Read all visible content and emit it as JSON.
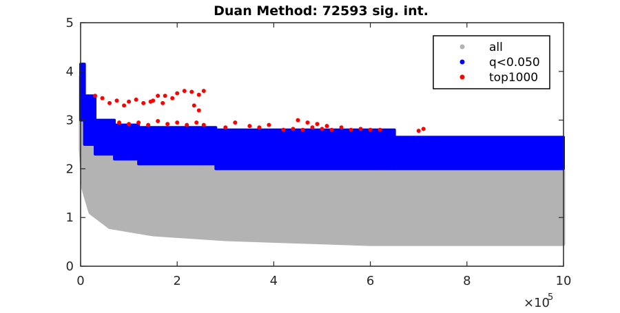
{
  "chart_data": {
    "type": "scatter",
    "title": "Duan Method: 72593 sig. int.",
    "xlabel": "",
    "ylabel": "",
    "xlim": [
      0,
      1000000
    ],
    "ylim": [
      0,
      5
    ],
    "x_ticks": [
      0,
      200000,
      400000,
      600000,
      800000,
      1000000
    ],
    "x_tick_labels": [
      "0",
      "2",
      "4",
      "6",
      "8",
      "10"
    ],
    "x_exponent_label": "×10",
    "x_exponent_power": "5",
    "y_ticks": [
      0,
      1,
      2,
      3,
      4,
      5
    ],
    "y_tick_labels": [
      "0",
      "1",
      "2",
      "3",
      "4",
      "5"
    ],
    "grid": false,
    "legend_position": "top-right",
    "series": [
      {
        "name": "all",
        "color": "#b3b3b3",
        "description_bounds": {
          "upper": [
            [
              0,
              3.9
            ],
            [
              5000,
              3.2
            ],
            [
              20000,
              2.7
            ],
            [
              60000,
              2.4
            ],
            [
              150000,
              2.2
            ],
            [
              300000,
              2.05
            ],
            [
              1000000,
              1.95
            ]
          ],
          "lower": [
            [
              0,
              2.4
            ],
            [
              5000,
              1.6
            ],
            [
              20000,
              1.1
            ],
            [
              60000,
              0.8
            ],
            [
              150000,
              0.65
            ],
            [
              300000,
              0.55
            ],
            [
              600000,
              0.45
            ],
            [
              1000000,
              0.45
            ]
          ]
        }
      },
      {
        "name": "q<0.050",
        "color": "#0000ff",
        "bands": [
          {
            "x": [
              0,
              8000
            ],
            "y": [
              3.0,
              4.15
            ]
          },
          {
            "x": [
              8000,
              30000
            ],
            "y": [
              2.5,
              3.5
            ]
          },
          {
            "x": [
              30000,
              70000
            ],
            "y": [
              2.3,
              3.0
            ]
          },
          {
            "x": [
              70000,
              120000
            ],
            "y": [
              2.2,
              2.9
            ]
          },
          {
            "x": [
              120000,
              280000
            ],
            "y": [
              2.1,
              2.85
            ]
          },
          {
            "x": [
              280000,
              650000
            ],
            "y": [
              2.0,
              2.8
            ]
          },
          {
            "x": [
              650000,
              1000000
            ],
            "y": [
              2.0,
              2.65
            ]
          }
        ]
      },
      {
        "name": "top1000",
        "color": "#ff0000",
        "points": [
          [
            30000,
            3.5
          ],
          [
            45000,
            3.45
          ],
          [
            60000,
            3.35
          ],
          [
            75000,
            3.4
          ],
          [
            90000,
            3.3
          ],
          [
            100000,
            3.38
          ],
          [
            115000,
            3.42
          ],
          [
            130000,
            3.35
          ],
          [
            145000,
            3.38
          ],
          [
            160000,
            3.5
          ],
          [
            175000,
            3.5
          ],
          [
            190000,
            3.45
          ],
          [
            200000,
            3.55
          ],
          [
            215000,
            3.6
          ],
          [
            230000,
            3.58
          ],
          [
            245000,
            3.52
          ],
          [
            255000,
            3.6
          ],
          [
            80000,
            2.95
          ],
          [
            100000,
            2.92
          ],
          [
            120000,
            2.95
          ],
          [
            140000,
            2.9
          ],
          [
            160000,
            2.98
          ],
          [
            180000,
            2.92
          ],
          [
            200000,
            2.95
          ],
          [
            220000,
            2.9
          ],
          [
            240000,
            2.95
          ],
          [
            255000,
            2.9
          ],
          [
            245000,
            3.2
          ],
          [
            235000,
            3.3
          ],
          [
            150000,
            3.4
          ],
          [
            170000,
            3.35
          ],
          [
            300000,
            2.85
          ],
          [
            320000,
            2.95
          ],
          [
            350000,
            2.88
          ],
          [
            370000,
            2.85
          ],
          [
            390000,
            2.9
          ],
          [
            420000,
            2.8
          ],
          [
            440000,
            2.82
          ],
          [
            460000,
            2.8
          ],
          [
            480000,
            2.85
          ],
          [
            500000,
            2.82
          ],
          [
            520000,
            2.8
          ],
          [
            540000,
            2.85
          ],
          [
            560000,
            2.8
          ],
          [
            580000,
            2.82
          ],
          [
            600000,
            2.8
          ],
          [
            620000,
            2.8
          ],
          [
            450000,
            3.0
          ],
          [
            470000,
            2.95
          ],
          [
            490000,
            2.92
          ],
          [
            510000,
            2.88
          ],
          [
            700000,
            2.78
          ],
          [
            710000,
            2.82
          ]
        ]
      }
    ]
  }
}
